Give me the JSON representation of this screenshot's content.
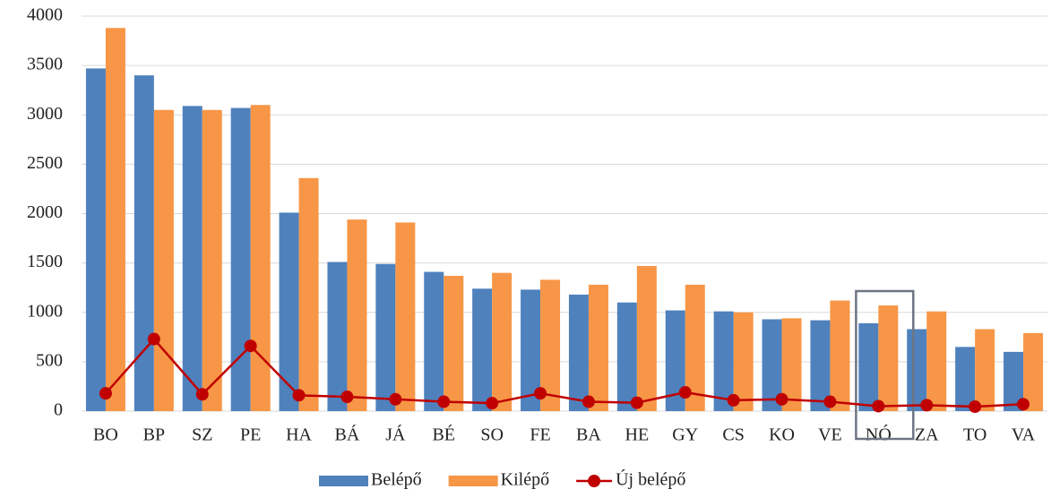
{
  "chart_data": {
    "type": "bar",
    "categories": [
      "BO",
      "BP",
      "SZ",
      "PE",
      "HA",
      "BÁ",
      "JÁ",
      "BÉ",
      "SO",
      "FE",
      "BA",
      "HE",
      "GY",
      "CS",
      "KO",
      "VE",
      "NÓ",
      "ZA",
      "TO",
      "VA"
    ],
    "series": [
      {
        "name": "Belépő",
        "color": "#4f81bd",
        "values": [
          3470,
          3400,
          3090,
          3070,
          2010,
          1510,
          1490,
          1410,
          1240,
          1230,
          1180,
          1100,
          1020,
          1010,
          930,
          920,
          890,
          830,
          650,
          600
        ]
      },
      {
        "name": "Kilépő",
        "color": "#f79646",
        "values": [
          3880,
          3050,
          3050,
          3100,
          2360,
          1940,
          1910,
          1370,
          1400,
          1330,
          1280,
          1470,
          1280,
          1000,
          940,
          1120,
          1070,
          1010,
          830,
          790
        ]
      },
      {
        "name": "Új belépő",
        "type": "line",
        "color": "#c00000",
        "values": [
          180,
          730,
          170,
          660,
          160,
          145,
          120,
          95,
          80,
          180,
          95,
          85,
          190,
          110,
          120,
          95,
          50,
          60,
          45,
          70
        ]
      }
    ],
    "ylim": [
      0,
      4000
    ],
    "yticks": [
      0,
      500,
      1000,
      1500,
      2000,
      2500,
      3000,
      3500,
      4000
    ],
    "grid": true,
    "legend": "bottom"
  }
}
